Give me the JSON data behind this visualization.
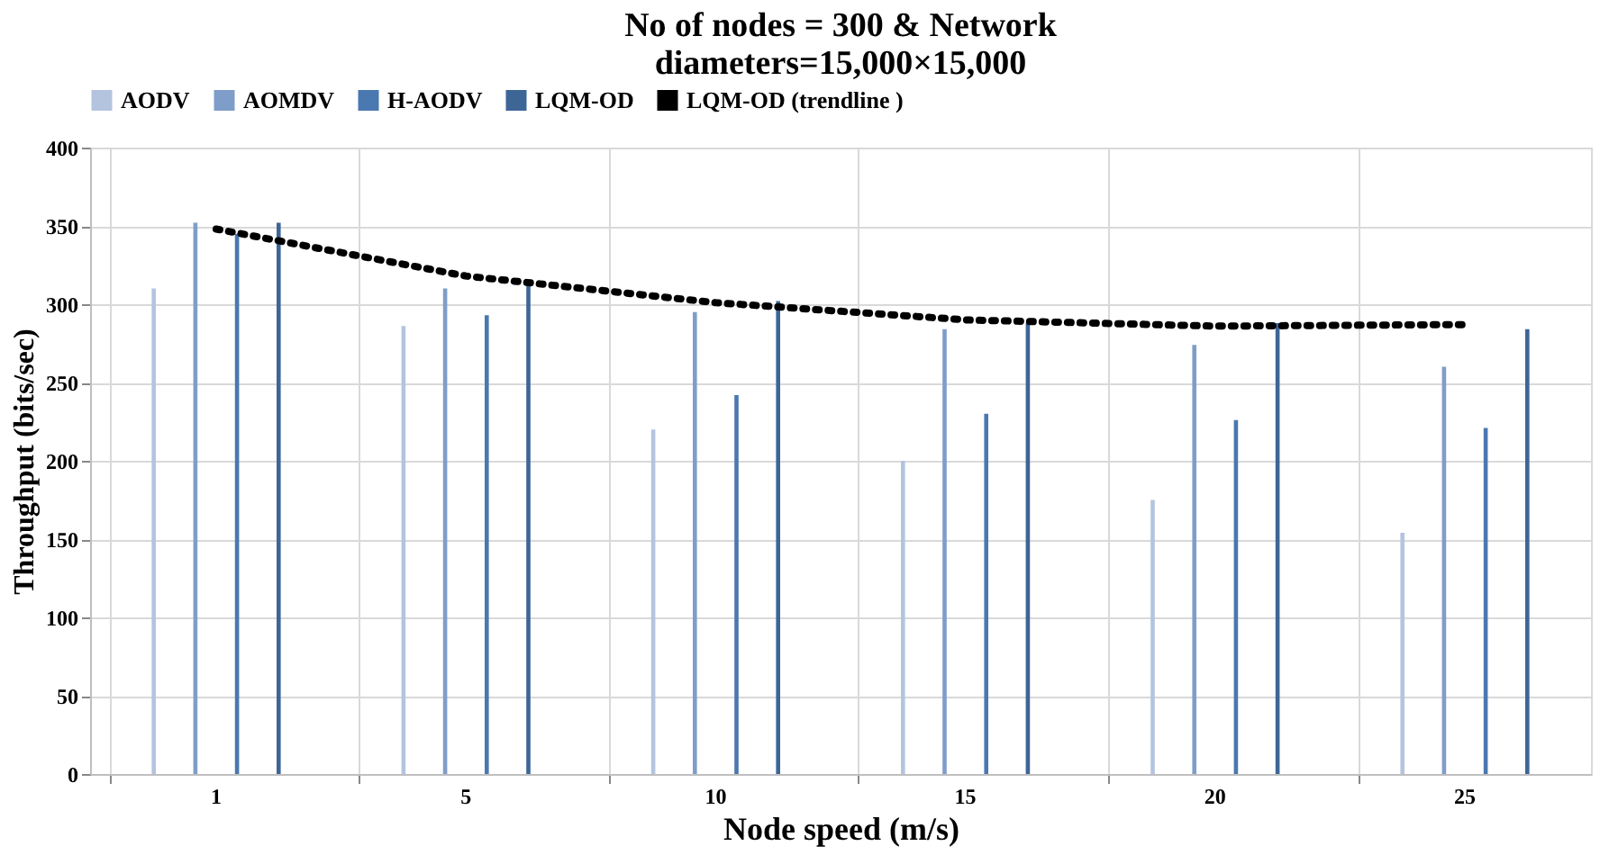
{
  "chart_data": {
    "type": "bar",
    "title": [
      "No of nodes = 300 &  Network",
      "diameters=15,000×15,000"
    ],
    "xlabel": "Node speed (m/s)",
    "ylabel": "Throughput (bits/sec)",
    "categories": [
      "1",
      "5",
      "10",
      "15",
      "20",
      "25"
    ],
    "series": [
      {
        "name": "AODV",
        "color": "#b4c4df",
        "values": [
          310,
          286,
          220,
          200,
          175,
          154
        ]
      },
      {
        "name": "AOMDV",
        "color": "#7f9dc9",
        "values": [
          352,
          310,
          295,
          284,
          274,
          260
        ]
      },
      {
        "name": "H-AODV",
        "color": "#4a78b0",
        "values": [
          345,
          293,
          242,
          230,
          226,
          221
        ]
      },
      {
        "name": "LQM-OD",
        "color": "#3d6696",
        "values": [
          352,
          313,
          302,
          288,
          288,
          284
        ]
      },
      {
        "name": "LQM-OD (trendline )",
        "type": "line",
        "color": "#000000",
        "line_style": "dotted",
        "values": [
          348,
          318,
          301,
          290,
          286,
          287
        ]
      }
    ],
    "ylim": [
      0,
      400
    ],
    "yticks": [
      0,
      50,
      100,
      150,
      200,
      250,
      300,
      350,
      400
    ],
    "grid": true,
    "legend": "top"
  }
}
